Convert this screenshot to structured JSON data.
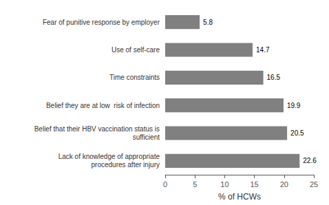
{
  "chart_data": {
    "type": "bar",
    "orientation": "horizontal",
    "categories": [
      "Lack of knowledge of appropriate\nprocedures after injury",
      "Belief that their HBV vaccination status is\nsufficient",
      "Belief they are at low  risk of infection",
      "Time constraints",
      "Use of self-care",
      "Fear of punitive response by employer"
    ],
    "values": [
      22.6,
      20.5,
      19.9,
      16.5,
      14.7,
      5.8
    ],
    "color": "#808080",
    "xlabel": "% of HCWs",
    "xlim": [
      0,
      25
    ],
    "xticks": [
      0,
      5,
      10,
      15,
      20,
      25
    ],
    "data_labels": true,
    "grid": false
  }
}
